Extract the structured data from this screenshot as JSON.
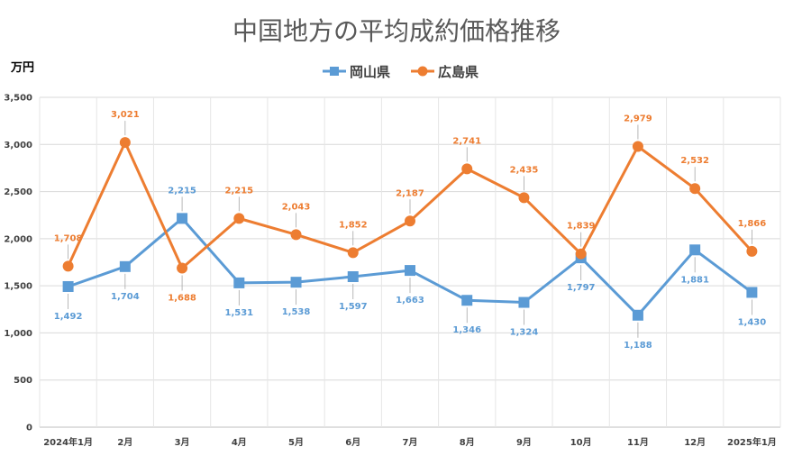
{
  "chart_data": {
    "type": "line",
    "title": "中国地方の平均成約価格推移",
    "ylabel": "万円",
    "xlabel": "",
    "ylim": [
      0,
      3500
    ],
    "yticks": [
      0,
      500,
      1000,
      1500,
      2000,
      2500,
      3000,
      3500
    ],
    "ytick_labels": [
      "0",
      "500",
      "1,000",
      "1,500",
      "2,000",
      "2,500",
      "3,000",
      "3,500"
    ],
    "grid": true,
    "legend_position": "top-center",
    "categories": [
      "2024年1月",
      "2月",
      "3月",
      "4月",
      "5月",
      "6月",
      "7月",
      "8月",
      "9月",
      "10月",
      "11月",
      "12月",
      "2025年1月"
    ],
    "series": [
      {
        "name": "岡山県",
        "color": "#5b9bd5",
        "marker": "square",
        "label_position": [
          "below",
          "below",
          "above",
          "below",
          "below",
          "below",
          "below",
          "below",
          "below",
          "below",
          "below",
          "below",
          "below"
        ],
        "values": [
          1492,
          1704,
          2215,
          1531,
          1538,
          1597,
          1663,
          1346,
          1324,
          1797,
          1188,
          1881,
          1430
        ],
        "labels": [
          "1,492",
          "1,704",
          "2,215",
          "1,531",
          "1,538",
          "1,597",
          "1,663",
          "1,346",
          "1,324",
          "1,797",
          "1,188",
          "1,881",
          "1,430"
        ]
      },
      {
        "name": "広島県",
        "color": "#ed7d31",
        "marker": "circle",
        "label_position": [
          "above",
          "above",
          "below",
          "above",
          "above",
          "above",
          "above",
          "above",
          "above",
          "above",
          "above",
          "above",
          "above"
        ],
        "values": [
          1708,
          3021,
          1688,
          2215,
          2043,
          1852,
          2187,
          2741,
          2435,
          1839,
          2979,
          2532,
          1866
        ],
        "labels": [
          "1,708",
          "3,021",
          "1,688",
          "2,215",
          "2,043",
          "1,852",
          "2,187",
          "2,741",
          "2,435",
          "1,839",
          "2,979",
          "2,532",
          "1,866"
        ]
      }
    ]
  }
}
